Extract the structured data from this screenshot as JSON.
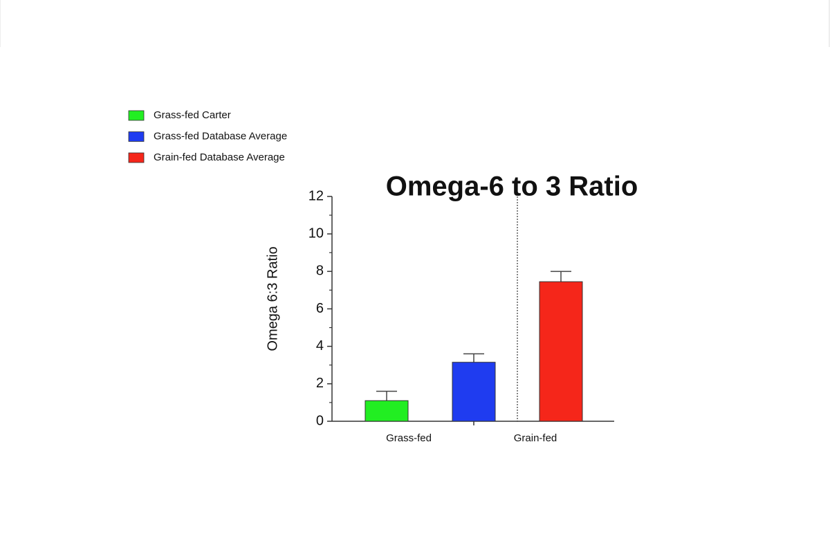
{
  "chart_data": {
    "type": "bar",
    "title": "Omega-6 to 3 Ratio",
    "y_label": "Omega 6:3 Ratio",
    "categories": [
      "Grass-fed",
      "Grain-fed"
    ],
    "series": [
      {
        "name": "Grass-fed Carter",
        "color": "#22ee22",
        "values": [
          1.1,
          null
        ],
        "errors": [
          0.5,
          null
        ]
      },
      {
        "name": "Grass-fed Database Average",
        "color": "#1f3cf0",
        "values": [
          3.15,
          null
        ],
        "errors": [
          0.45,
          null
        ]
      },
      {
        "name": "Grain-fed Database Average",
        "color": "#f5261a",
        "values": [
          null,
          7.45
        ],
        "errors": [
          null,
          0.55
        ]
      }
    ],
    "ylim": [
      0,
      12
    ],
    "yticks": [
      0,
      2,
      4,
      6,
      8,
      10,
      12
    ],
    "yminorticks": [
      1,
      3,
      5,
      7,
      9,
      11
    ],
    "legend": "top-left"
  }
}
